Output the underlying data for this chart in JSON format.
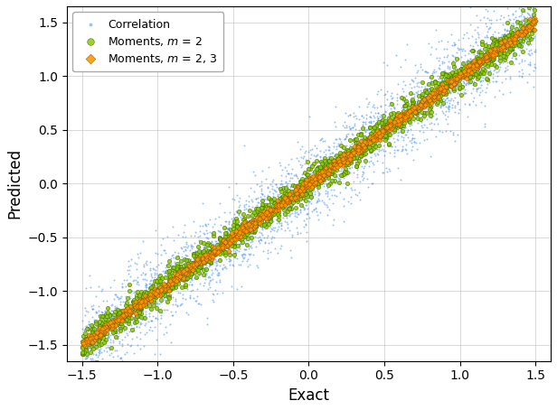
{
  "title": "",
  "xlabel": "Exact",
  "ylabel": "Predicted",
  "xlim": [
    -1.6,
    1.6
  ],
  "ylim": [
    -1.65,
    1.65
  ],
  "xticks": [
    -1.5,
    -1.0,
    -0.5,
    0.0,
    0.5,
    1.0,
    1.5
  ],
  "yticks": [
    -1.5,
    -1.0,
    -0.5,
    0.0,
    0.5,
    1.0,
    1.5
  ],
  "n_blue": 3000,
  "n_green": 1500,
  "n_orange": 1000,
  "blue_color": "#5599ee",
  "green_color": "#88cc00",
  "orange_color": "#ff9900",
  "blue_noise_scale": 0.2,
  "green_noise_scale": 0.07,
  "orange_noise_scale": 0.025,
  "legend_labels": [
    "Correlation",
    "Moments, $m$ = 2",
    "Moments, $m$ = 2, 3"
  ],
  "figsize": [
    6.16,
    4.54
  ],
  "dpi": 100,
  "seed": 42
}
